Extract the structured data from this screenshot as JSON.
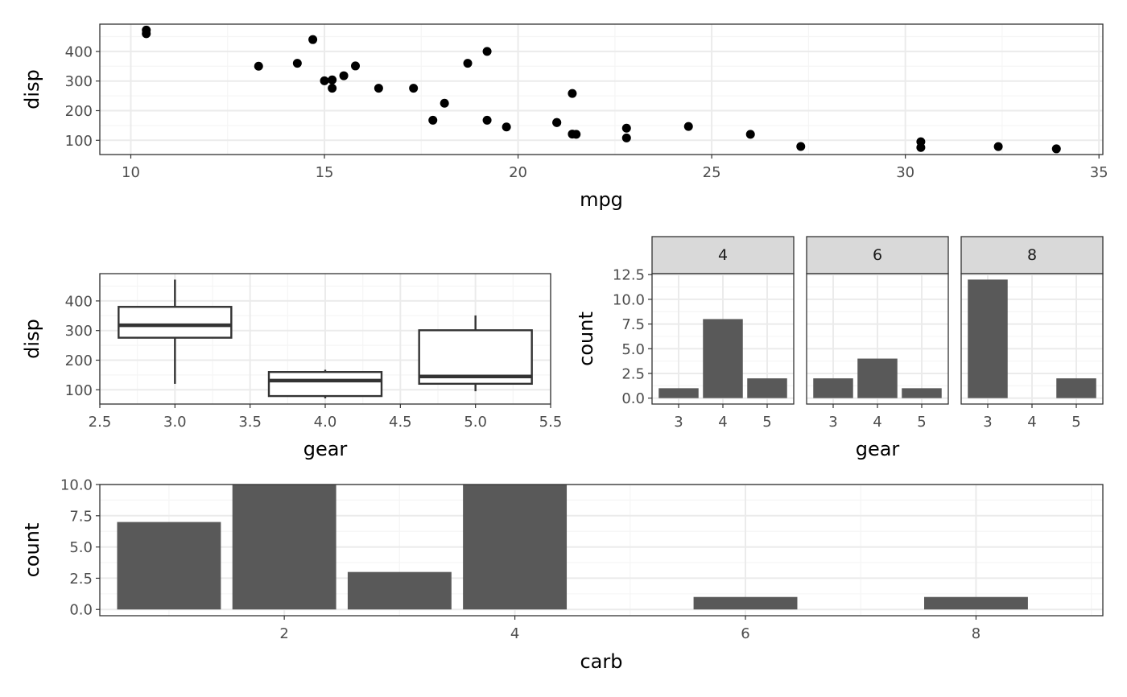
{
  "chart_data": [
    {
      "type": "scatter",
      "xlabel": "mpg",
      "ylabel": "disp",
      "xlim": [
        9.2,
        35.1
      ],
      "ylim": [
        51.9,
        492.1
      ],
      "xticks": [
        10,
        15,
        20,
        25,
        30,
        35
      ],
      "yticks": [
        100,
        200,
        300,
        400
      ],
      "points": [
        [
          21.0,
          160
        ],
        [
          21.0,
          160
        ],
        [
          22.8,
          108
        ],
        [
          21.4,
          258
        ],
        [
          18.7,
          360
        ],
        [
          18.1,
          225
        ],
        [
          14.3,
          360
        ],
        [
          24.4,
          146.7
        ],
        [
          22.8,
          140.8
        ],
        [
          19.2,
          167.6
        ],
        [
          17.8,
          167.6
        ],
        [
          16.4,
          275.8
        ],
        [
          17.3,
          275.8
        ],
        [
          15.2,
          275.8
        ],
        [
          10.4,
          472
        ],
        [
          10.4,
          460
        ],
        [
          14.7,
          440
        ],
        [
          32.4,
          78.7
        ],
        [
          30.4,
          75.7
        ],
        [
          33.9,
          71.1
        ],
        [
          21.5,
          120.1
        ],
        [
          15.5,
          318
        ],
        [
          15.2,
          304
        ],
        [
          13.3,
          350
        ],
        [
          19.2,
          400
        ],
        [
          27.3,
          79
        ],
        [
          26.0,
          120.3
        ],
        [
          30.4,
          95.1
        ],
        [
          15.8,
          351
        ],
        [
          19.7,
          145
        ],
        [
          15.0,
          301
        ],
        [
          21.4,
          121
        ]
      ],
      "grid": true
    },
    {
      "type": "box",
      "xlabel": "gear",
      "ylabel": "disp",
      "xlim": [
        2.5,
        5.5
      ],
      "ylim": [
        51.9,
        492.1
      ],
      "xticks": [
        "2.5",
        "3.0",
        "3.5",
        "4.0",
        "4.5",
        "5.0",
        "5.5"
      ],
      "yticks": [
        100,
        200,
        300,
        400
      ],
      "boxes": [
        {
          "x": 3,
          "whisker_low": 120.1,
          "q1": 275.8,
          "median": 318,
          "q3": 380,
          "whisker_high": 472
        },
        {
          "x": 4,
          "whisker_low": 71.1,
          "q1": 78.85,
          "median": 130.9,
          "q3": 160,
          "whisker_high": 167.6
        },
        {
          "x": 5,
          "whisker_low": 95.1,
          "q1": 120.3,
          "median": 145,
          "q3": 301,
          "whisker_high": 351
        }
      ],
      "grid": true
    },
    {
      "type": "bar",
      "xlabel": "gear",
      "ylabel": "count",
      "ylim": [
        -0.6,
        12.6
      ],
      "yticks": [
        "0.0",
        "2.5",
        "5.0",
        "7.5",
        "10.0",
        "12.5"
      ],
      "categories": [
        "3",
        "4",
        "5"
      ],
      "facets": [
        {
          "label": "4",
          "values": [
            1,
            8,
            2
          ]
        },
        {
          "label": "6",
          "values": [
            2,
            4,
            1
          ]
        },
        {
          "label": "8",
          "values": [
            12,
            0,
            2
          ]
        }
      ],
      "grid": true
    },
    {
      "type": "bar",
      "xlabel": "carb",
      "ylabel": "count",
      "xlim": [
        0.4,
        9.1
      ],
      "ylim": [
        -0.5,
        10.0
      ],
      "xticks": [
        2,
        4,
        6,
        8
      ],
      "yticks": [
        "0.0",
        "2.5",
        "5.0",
        "7.5",
        "10.0"
      ],
      "bars": [
        {
          "x": 1,
          "value": 7
        },
        {
          "x": 2,
          "value": 10
        },
        {
          "x": 3,
          "value": 3
        },
        {
          "x": 4,
          "value": 10
        },
        {
          "x": 6,
          "value": 1
        },
        {
          "x": 8,
          "value": 1
        }
      ],
      "grid": true
    }
  ]
}
